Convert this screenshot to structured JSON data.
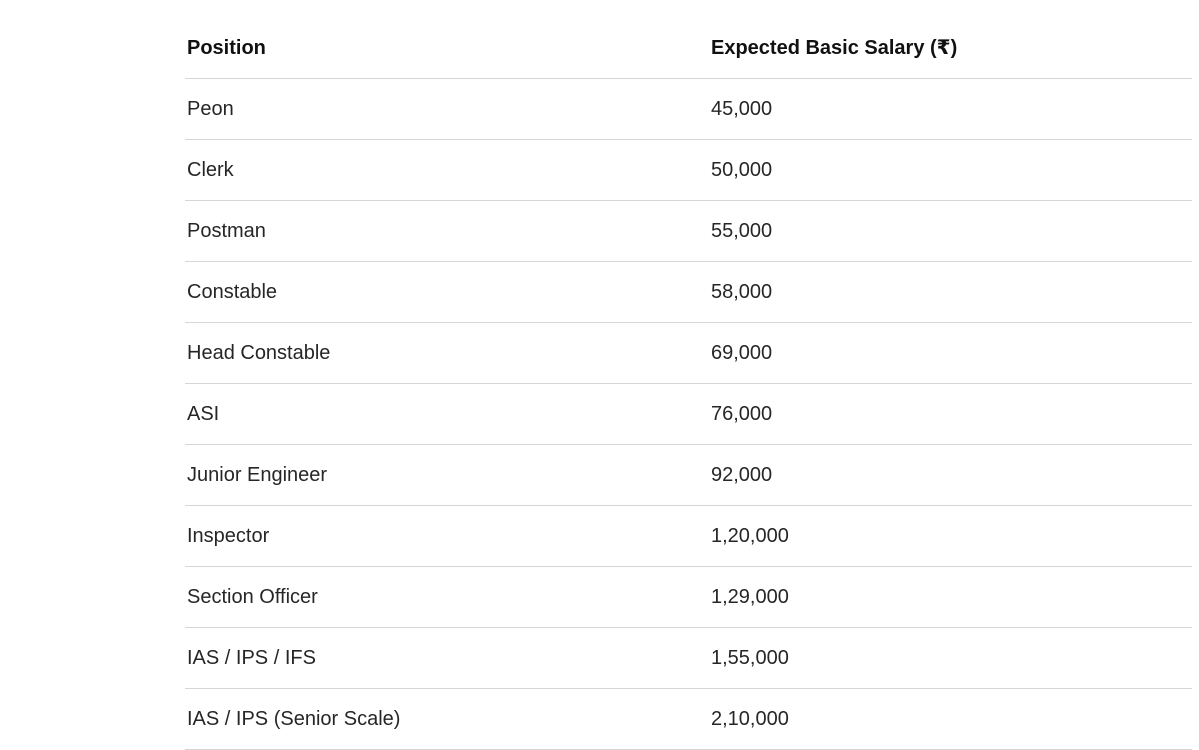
{
  "table": {
    "headers": [
      "Position",
      "Expected Basic Salary (₹)"
    ],
    "rows": [
      [
        "Peon",
        "45,000"
      ],
      [
        "Clerk",
        "50,000"
      ],
      [
        "Postman",
        "55,000"
      ],
      [
        "Constable",
        "58,000"
      ],
      [
        "Head Constable",
        "69,000"
      ],
      [
        "ASI",
        "76,000"
      ],
      [
        "Junior Engineer",
        "92,000"
      ],
      [
        "Inspector",
        "1,20,000"
      ],
      [
        "Section Officer",
        "1,29,000"
      ],
      [
        "IAS / IPS / IFS",
        "1,55,000"
      ],
      [
        "IAS / IPS (Senior Scale)",
        "2,10,000"
      ]
    ]
  }
}
